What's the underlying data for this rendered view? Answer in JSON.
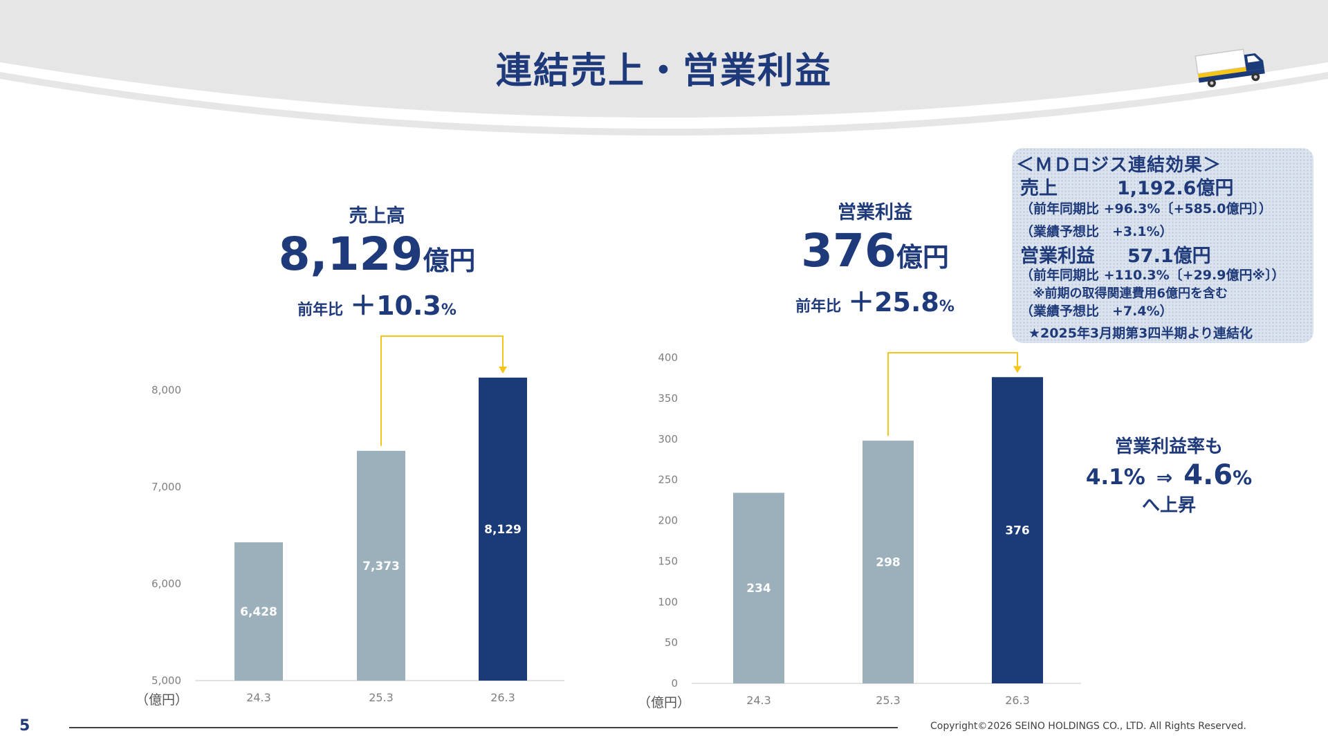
{
  "header": {
    "title": "連結売上・営業利益",
    "icon": "truck-icon"
  },
  "kpi_sales": {
    "label": "売上高",
    "value": "8,129",
    "unit": "億円",
    "yoy_label": "前年比",
    "yoy_value": "＋10.3",
    "yoy_pct": "%"
  },
  "kpi_op": {
    "label": "営業利益",
    "value": "376",
    "unit": "億円",
    "yoy_label": "前年比",
    "yoy_value": "＋25.8",
    "yoy_pct": "%"
  },
  "md_box": {
    "title": "＜ＭＤロジス連結効果＞",
    "sales_label": "売上",
    "sales_value": "1,192.6億円",
    "sales_yoy": "（前年同期比 +96.3%〔+585.0億円〕）",
    "sales_forecast": "（業績予想比　+3.1%）",
    "op_label": "営業利益",
    "op_value": "57.1億円",
    "op_yoy": "（前年同期比 +110.3%〔+29.9億円※〕）",
    "op_note": "※前期の取得関連費用6億円を含む",
    "op_forecast": "（業績予想比　+7.4%）",
    "consolidation": "★2025年3月期第3四半期より連結化"
  },
  "margin_note": {
    "line1": "営業利益率も",
    "from": "4.1%",
    "arrow": "⇒",
    "to": "4.6",
    "pct": "%",
    "line3": "へ上昇"
  },
  "footer": {
    "page": "5",
    "copyright": "Copyright©2026  SEINO HOLDINGS CO., LTD.  All  Rights Reserved."
  },
  "colors": {
    "navy": "#1b3a78",
    "grey_bar": "#9bb0bb",
    "accent": "#f5c518",
    "title": "#1f3a7a"
  },
  "chart_data": [
    {
      "type": "bar",
      "categories": [
        "24.3",
        "25.3",
        "26.3"
      ],
      "values": [
        6428,
        7373,
        8129
      ],
      "labels": [
        "6,428",
        "7,373",
        "8,129"
      ],
      "unit_label": "（億円）",
      "ylim": [
        5000,
        8000
      ],
      "yticks": [
        5000,
        6000,
        7000,
        8000
      ],
      "ytick_labels": [
        "5,000",
        "6,000",
        "7,000",
        "8,000"
      ],
      "highlight_index": 2,
      "grid": false
    },
    {
      "type": "bar",
      "categories": [
        "24.3",
        "25.3",
        "26.3"
      ],
      "values": [
        234,
        298,
        376
      ],
      "labels": [
        "234",
        "298",
        "376"
      ],
      "unit_label": "（億円）",
      "ylim": [
        0,
        400
      ],
      "yticks": [
        0,
        50,
        100,
        150,
        200,
        250,
        300,
        350,
        400
      ],
      "ytick_labels": [
        "0",
        "50",
        "100",
        "150",
        "200",
        "250",
        "300",
        "350",
        "400"
      ],
      "highlight_index": 2,
      "grid": false
    }
  ]
}
